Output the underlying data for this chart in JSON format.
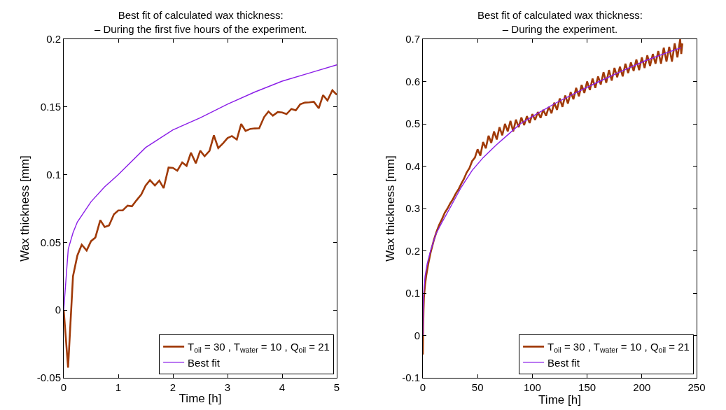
{
  "chart_data": [
    {
      "type": "line",
      "title": "Best fit of calculated wax thickness:\n– During the first five hours of the experiment.",
      "xlabel": "Time [h]",
      "ylabel": "Wax thickness [mm]",
      "xlim": [
        0,
        5
      ],
      "xticks": [
        0,
        1,
        2,
        3,
        4,
        5
      ],
      "ylim": [
        -0.05,
        0.2
      ],
      "yticks": [
        -0.05,
        0,
        0.05,
        0.1,
        0.15,
        0.2
      ],
      "grid": false,
      "legend": "bottom right",
      "marker": "none",
      "line_style": "solid",
      "series": [
        {
          "name": "T$_{oil}$ = 30 , T$_{water}$ = 10 , Q$_{oil}$ = 21",
          "color": "#a03a08",
          "x": [
            0,
            0.08,
            0.17,
            0.25,
            0.33,
            0.42,
            0.5,
            0.58,
            0.67,
            0.75,
            0.83,
            0.92,
            1.0,
            1.08,
            1.17,
            1.25,
            1.33,
            1.42,
            1.5,
            1.58,
            1.67,
            1.75,
            1.83,
            1.92,
            2.0,
            2.08,
            2.17,
            2.25,
            2.33,
            2.42,
            2.5,
            2.58,
            2.67,
            2.75,
            2.83,
            2.92,
            3.0,
            3.08,
            3.17,
            3.25,
            3.33,
            3.42,
            3.5,
            3.58,
            3.67,
            3.75,
            3.83,
            3.92,
            4.0,
            4.08,
            4.17,
            4.25,
            4.33,
            4.42,
            4.5,
            4.58,
            4.67,
            4.75,
            4.83,
            4.92,
            5.0
          ],
          "values": [
            0,
            -0.0425,
            0.0249,
            0.0403,
            0.0483,
            0.044,
            0.0509,
            0.0536,
            0.0664,
            0.0613,
            0.0625,
            0.0707,
            0.0736,
            0.0736,
            0.0771,
            0.0766,
            0.0809,
            0.0853,
            0.092,
            0.0959,
            0.092,
            0.0956,
            0.09,
            0.1053,
            0.105,
            0.1029,
            0.109,
            0.1065,
            0.1162,
            0.1084,
            0.1177,
            0.1136,
            0.1176,
            0.129,
            0.1196,
            0.1232,
            0.127,
            0.1285,
            0.1259,
            0.1374,
            0.1323,
            0.1338,
            0.1341,
            0.1343,
            0.1425,
            0.1466,
            0.1435,
            0.1462,
            0.1459,
            0.1447,
            0.1485,
            0.1474,
            0.1519,
            0.1532,
            0.1534,
            0.1538,
            0.149,
            0.1587,
            0.1548,
            0.1623,
            0.159
          ]
        },
        {
          "name": "Best fit",
          "color": "#8b1ee8",
          "x": [
            0,
            0.083,
            0.17,
            0.25,
            0.5,
            0.75,
            1,
            1.5,
            2,
            2.5,
            3,
            3.5,
            4,
            4.5,
            5
          ],
          "values": [
            0,
            0.045,
            0.057,
            0.065,
            0.08,
            0.091,
            0.1,
            0.12,
            0.133,
            0.142,
            0.152,
            0.161,
            0.169,
            0.175,
            0.181
          ]
        }
      ]
    },
    {
      "type": "line",
      "title": "Best fit of calculated wax thickness:\n– During the experiment.",
      "xlabel": "Time [h]",
      "ylabel": "Wax thickness [mm]",
      "xlim": [
        0,
        250
      ],
      "xticks": [
        0,
        50,
        100,
        150,
        200,
        250
      ],
      "ylim": [
        -0.1,
        0.7
      ],
      "yticks": [
        -0.1,
        0,
        0.1,
        0.2,
        0.3,
        0.4,
        0.5,
        0.6,
        0.7
      ],
      "grid": false,
      "legend": "bottom right",
      "marker": "none",
      "line_style": "solid",
      "series": [
        {
          "name": "T$_{oil}$ = 30 , T$_{water}$ = 10 , Q$_{oil}$ = 21",
          "color": "#a03a08",
          "x": [
            0,
            0.3,
            0.6,
            1,
            2,
            3,
            5,
            7,
            8.5,
            10,
            12.5,
            15,
            17.5,
            20,
            22.5,
            25,
            27.5,
            30,
            32.5,
            35,
            37.5,
            40,
            42.5,
            45,
            47.5,
            50,
            52.5,
            55,
            57.5,
            60,
            62.5,
            65,
            67.5,
            70,
            72.5,
            75,
            77.5,
            80,
            82.5,
            85,
            87.5,
            90,
            92.5,
            95,
            97.5,
            100,
            102.5,
            105,
            107.5,
            110,
            112.5,
            115,
            117.5,
            120,
            122.5,
            125,
            127.5,
            130,
            132.5,
            135,
            137.5,
            140,
            142.5,
            145,
            147.5,
            150,
            152.5,
            155,
            157.5,
            160,
            162.5,
            165,
            167.5,
            170,
            172.5,
            175,
            177.5,
            180,
            182.5,
            185,
            187.5,
            190,
            192.5,
            195,
            197.5,
            200,
            202.5,
            205,
            207.5,
            210,
            212.5,
            215,
            217.5,
            220,
            222.5,
            225,
            227.5,
            230,
            232.5,
            235,
            236,
            237
          ],
          "values": [
            -0.045,
            0.02,
            0.06,
            0.09,
            0.12,
            0.14,
            0.17,
            0.195,
            0.21,
            0.225,
            0.245,
            0.262,
            0.275,
            0.29,
            0.3,
            0.312,
            0.322,
            0.335,
            0.345,
            0.358,
            0.37,
            0.385,
            0.395,
            0.412,
            0.42,
            0.44,
            0.425,
            0.457,
            0.442,
            0.472,
            0.455,
            0.482,
            0.463,
            0.492,
            0.473,
            0.5,
            0.482,
            0.507,
            0.482,
            0.51,
            0.492,
            0.515,
            0.497,
            0.518,
            0.502,
            0.523,
            0.509,
            0.528,
            0.514,
            0.533,
            0.519,
            0.54,
            0.525,
            0.55,
            0.533,
            0.56,
            0.54,
            0.567,
            0.548,
            0.575,
            0.558,
            0.585,
            0.565,
            0.592,
            0.573,
            0.6,
            0.58,
            0.607,
            0.585,
            0.612,
            0.593,
            0.622,
            0.597,
            0.627,
            0.602,
            0.632,
            0.61,
            0.635,
            0.612,
            0.642,
            0.62,
            0.645,
            0.625,
            0.652,
            0.627,
            0.657,
            0.632,
            0.662,
            0.637,
            0.665,
            0.642,
            0.672,
            0.642,
            0.68,
            0.647,
            0.682,
            0.647,
            0.69,
            0.657,
            0.7,
            0.665,
            0.69
          ]
        },
        {
          "name": "Best fit",
          "color": "#8b1ee8",
          "x": [
            0,
            0.2,
            0.8,
            2,
            4,
            7,
            12,
            17,
            24.5,
            35,
            45,
            55,
            67,
            78,
            89,
            105,
            122,
            141,
            161,
            182,
            204,
            225,
            236
          ],
          "values": [
            0,
            0.06,
            0.1,
            0.14,
            0.17,
            0.2,
            0.24,
            0.265,
            0.3,
            0.35,
            0.39,
            0.42,
            0.45,
            0.475,
            0.5,
            0.525,
            0.55,
            0.575,
            0.6,
            0.625,
            0.65,
            0.67,
            0.68
          ]
        }
      ]
    }
  ]
}
